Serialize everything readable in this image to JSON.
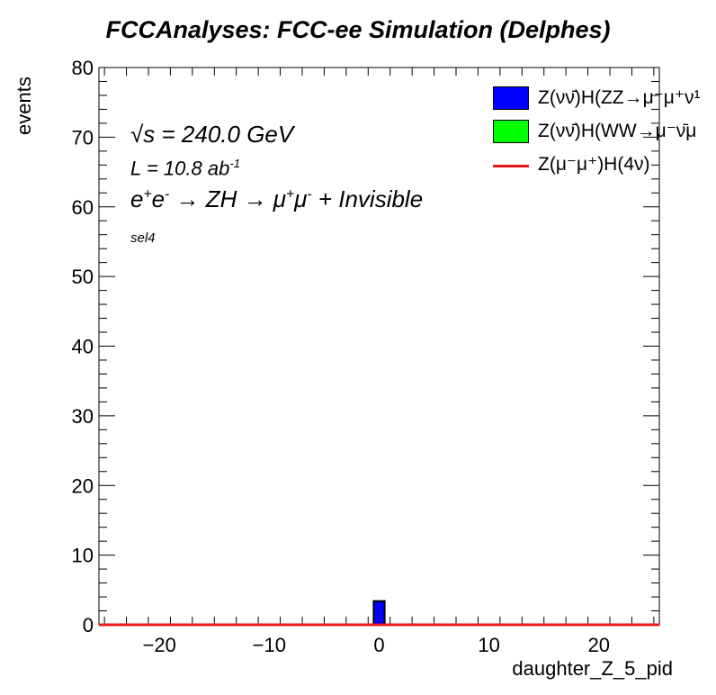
{
  "title": "FCCAnalyses: FCC-ee Simulation (Delphes)",
  "annotations": {
    "sqrt_s": "= 240.0 GeV",
    "sqrt_s_symbol": "√s",
    "lumi": "L = 10.8 ab",
    "lumi_exp": "-1",
    "process_parts": [
      "e",
      "+",
      "e",
      "-",
      " → ZH → μ",
      "+",
      "μ",
      "-",
      " + Invisible"
    ],
    "process": "e+e- → ZH → μ+μ- + Invisible",
    "selection": "sel4"
  },
  "legend": [
    {
      "label": "Z(νν̄)H(ZZ→μ⁻μ⁺ν¹",
      "color": "#0000ff",
      "kind": "fill"
    },
    {
      "label": "Z(νν̄)H(WW→μ⁻ν̄μ",
      "color": "#00ff00",
      "kind": "fill"
    },
    {
      "label": "Z(μ⁻μ⁺)H(4ν)",
      "color": "#e8191b",
      "kind": "line"
    }
  ],
  "chart_data": {
    "type": "bar",
    "title": "FCCAnalyses: FCC-ee Simulation (Delphes)",
    "xlabel": "daughter_Z_5_pid",
    "ylabel": "events",
    "xlim": [
      -25.5,
      25.5
    ],
    "ylim": [
      0,
      80
    ],
    "x_ticks": [
      -20,
      -10,
      0,
      10,
      20
    ],
    "x_tick_labels": [
      "−20",
      "−10",
      "0",
      "10",
      "20"
    ],
    "y_ticks": [
      0,
      10,
      20,
      30,
      40,
      50,
      60,
      70,
      80
    ],
    "y_tick_labels": [
      "0",
      "10",
      "20",
      "30",
      "40",
      "50",
      "60",
      "70",
      "80"
    ],
    "bin_width": 1,
    "series": [
      {
        "name": "Z(νν̄)H(ZZ→μ⁻μ⁺ν¹",
        "color": "#0000ff",
        "bins": [
          {
            "x": 0,
            "value": 3.4
          }
        ]
      },
      {
        "name": "Z(νν̄)H(WW→μ⁻ν̄μ",
        "color": "#00ff00",
        "bins": []
      },
      {
        "name": "Z(μ⁻μ⁺)H(4ν)",
        "color": "#e8191b",
        "bins": [
          {
            "x": 0,
            "value": 0
          }
        ]
      }
    ],
    "grid": false,
    "legend_position": "top-right"
  }
}
